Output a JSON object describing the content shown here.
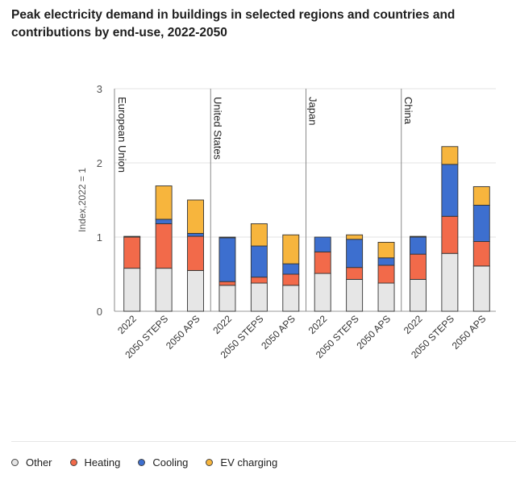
{
  "title": "Peak electricity demand in buildings in selected regions and countries and contributions by end-use, 2022-2050",
  "chart_data": {
    "type": "bar",
    "stacked": true,
    "ylabel": "Index,2022 = 1",
    "ylim": [
      0,
      3
    ],
    "yticks": [
      0,
      1,
      2,
      3
    ],
    "grid": true,
    "legend_position": "bottom",
    "groups": [
      "European Union",
      "United States",
      "Japan",
      "China"
    ],
    "scenarios": [
      "2022",
      "2050 STEPS",
      "2050 APS"
    ],
    "categories": [
      "2022",
      "2050 STEPS",
      "2050 APS",
      "2022",
      "2050 STEPS",
      "2050 APS",
      "2022",
      "2050 STEPS",
      "2050 APS",
      "2022",
      "2050 STEPS",
      "2050 APS"
    ],
    "series": [
      {
        "name": "Other",
        "color": "#e6e6e6",
        "values": [
          0.58,
          0.58,
          0.55,
          0.35,
          0.38,
          0.35,
          0.51,
          0.43,
          0.38,
          0.43,
          0.78,
          0.61
        ]
      },
      {
        "name": "Heating",
        "color": "#f26a4a",
        "values": [
          0.42,
          0.6,
          0.46,
          0.05,
          0.08,
          0.15,
          0.29,
          0.16,
          0.24,
          0.34,
          0.5,
          0.33
        ]
      },
      {
        "name": "Cooling",
        "color": "#3d6fcf",
        "values": [
          0.0,
          0.06,
          0.04,
          0.59,
          0.42,
          0.14,
          0.2,
          0.38,
          0.1,
          0.23,
          0.7,
          0.49
        ]
      },
      {
        "name": "EV charging",
        "color": "#f7b53d",
        "values": [
          0.01,
          0.45,
          0.45,
          0.01,
          0.3,
          0.39,
          0.0,
          0.06,
          0.21,
          0.01,
          0.24,
          0.25
        ]
      }
    ]
  }
}
